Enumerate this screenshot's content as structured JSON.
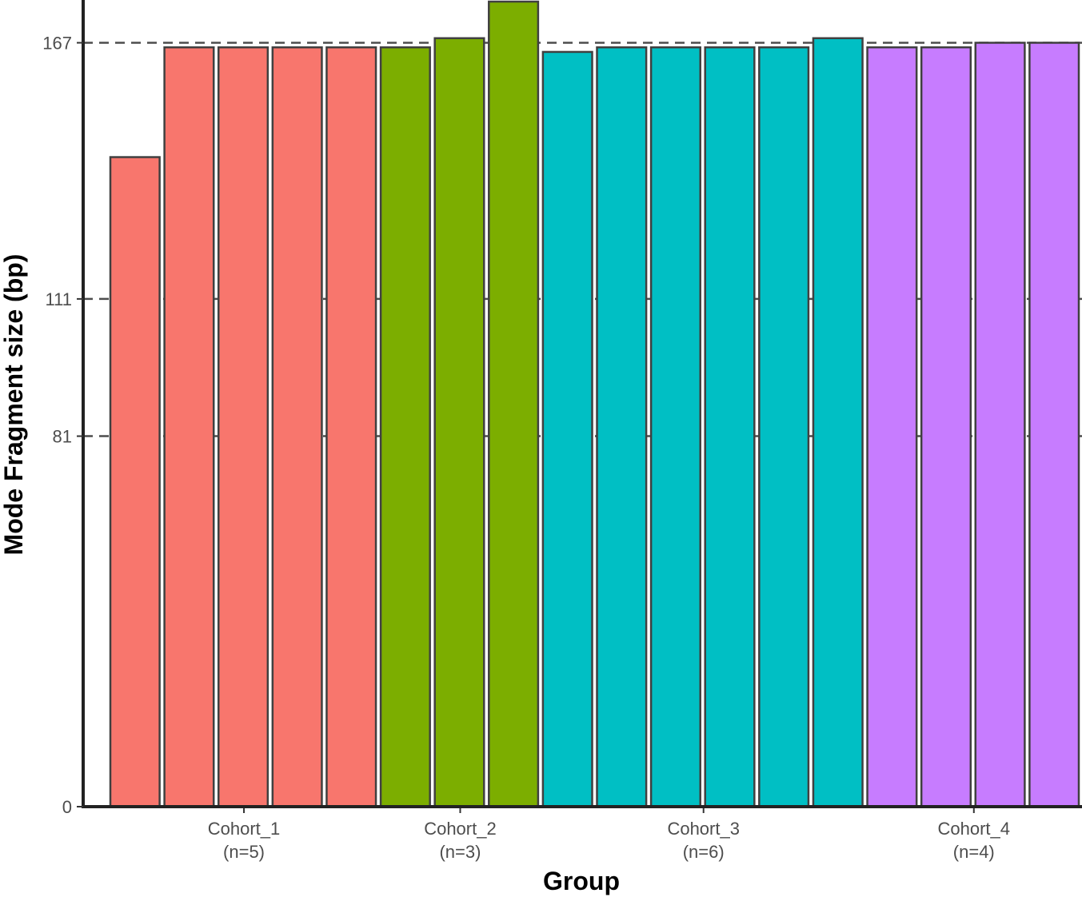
{
  "chart_data": {
    "type": "bar",
    "xlabel": "Group",
    "ylabel": "Mode Fragment size (bp)",
    "ylim": [
      0,
      176
    ],
    "yticks": [
      0,
      81,
      111,
      167
    ],
    "reference_lines": [
      81,
      111,
      167
    ],
    "grid": false,
    "legend": "none",
    "groups": [
      {
        "name": "Cohort_1",
        "count_label": "(n=5)",
        "color": "#F8766D",
        "values": [
          142,
          166,
          166,
          166,
          166
        ]
      },
      {
        "name": "Cohort_2",
        "count_label": "(n=3)",
        "color": "#7CAE00",
        "values": [
          166,
          168,
          176
        ]
      },
      {
        "name": "Cohort_3",
        "count_label": "(n=6)",
        "color": "#00BFC4",
        "values": [
          165,
          166,
          166,
          166,
          166,
          168
        ]
      },
      {
        "name": "Cohort_4",
        "count_label": "(n=4)",
        "color": "#C77CFF",
        "values": [
          166,
          166,
          167,
          167
        ]
      }
    ]
  }
}
